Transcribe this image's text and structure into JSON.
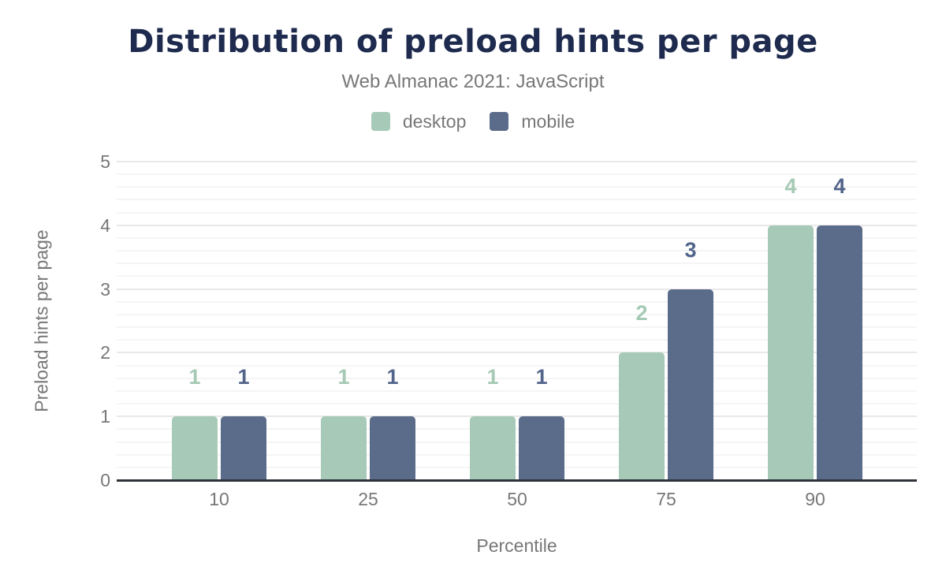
{
  "header": {
    "title": "Distribution of preload hints per page",
    "subtitle": "Web Almanac 2021: JavaScript"
  },
  "legend": {
    "items": [
      {
        "label": "desktop",
        "color": "#a7cab8"
      },
      {
        "label": "mobile",
        "color": "#5b6c8b"
      }
    ]
  },
  "chart_data": {
    "type": "bar",
    "title": "Distribution of preload hints per page",
    "subtitle": "Web Almanac 2021: JavaScript",
    "categories": [
      "10",
      "25",
      "50",
      "75",
      "90"
    ],
    "series": [
      {
        "name": "desktop",
        "color": "#a7cab8",
        "label_color": "#a4c9b4",
        "values": [
          1,
          1,
          1,
          2,
          4
        ]
      },
      {
        "name": "mobile",
        "color": "#5b6c8b",
        "label_color": "#52648a",
        "values": [
          1,
          1,
          1,
          3,
          4
        ]
      }
    ],
    "xlabel": "Percentile",
    "ylabel": "Preload hints per page",
    "ylim": [
      0,
      5
    ],
    "y_ticks": [
      0,
      1,
      2,
      3,
      4,
      5
    ],
    "y_major_step": 1,
    "y_minor_step": 0.2,
    "grid": true,
    "data_labels": true,
    "legend_position": "top"
  },
  "colors": {
    "title": "#1e2b4e",
    "muted_text": "#777777",
    "axis_line": "#2f333a",
    "grid_major": "#e8e8e8",
    "grid_minor": "#f5f5f5",
    "background": "#ffffff"
  }
}
